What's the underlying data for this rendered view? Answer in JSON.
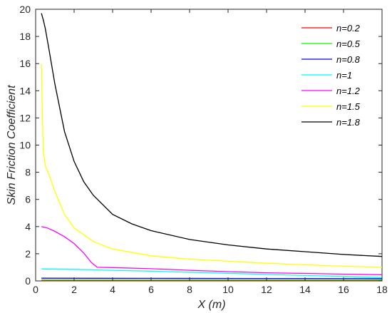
{
  "chart_data": {
    "type": "line",
    "xlabel": "X (m)",
    "ylabel": "Skin Friction Coefficient",
    "xlim": [
      0,
      18
    ],
    "ylim": [
      0,
      20
    ],
    "xticks": [
      0,
      2,
      4,
      6,
      8,
      10,
      12,
      14,
      16,
      18
    ],
    "yticks": [
      0,
      2,
      4,
      6,
      8,
      10,
      12,
      14,
      16,
      18,
      20
    ],
    "grid": false,
    "legend_position": "top-right",
    "series": [
      {
        "name": "n=0.2",
        "color": "#ff0000",
        "points": [
          [
            0.3,
            0.02
          ],
          [
            18,
            0.02
          ]
        ]
      },
      {
        "name": "n=0.5",
        "color": "#00ff00",
        "points": [
          [
            0.3,
            0.08
          ],
          [
            18,
            0.08
          ]
        ]
      },
      {
        "name": "n=0.8",
        "color": "#0000ff",
        "points": [
          [
            0.3,
            0.2
          ],
          [
            6,
            0.19
          ],
          [
            12,
            0.18
          ],
          [
            18,
            0.17
          ]
        ]
      },
      {
        "name": "n=1",
        "color": "#00ffff",
        "points": [
          [
            0.3,
            0.88
          ],
          [
            2,
            0.85
          ],
          [
            4,
            0.78
          ],
          [
            6,
            0.72
          ],
          [
            8,
            0.64
          ],
          [
            10,
            0.56
          ],
          [
            12,
            0.48
          ],
          [
            14,
            0.4
          ],
          [
            16,
            0.33
          ],
          [
            18,
            0.25
          ]
        ]
      },
      {
        "name": "n=1.2",
        "color": "#ff00ff",
        "points": [
          [
            0.3,
            4.0
          ],
          [
            0.6,
            3.9
          ],
          [
            1.0,
            3.65
          ],
          [
            1.5,
            3.25
          ],
          [
            2.0,
            2.75
          ],
          [
            2.5,
            2.05
          ],
          [
            2.9,
            1.35
          ],
          [
            3.2,
            1.0
          ],
          [
            4,
            0.98
          ],
          [
            6,
            0.9
          ],
          [
            8,
            0.78
          ],
          [
            10,
            0.68
          ],
          [
            12,
            0.6
          ],
          [
            14,
            0.55
          ],
          [
            16,
            0.5
          ],
          [
            18,
            0.45
          ]
        ]
      },
      {
        "name": "n=1.5",
        "color": "#ffff00",
        "points": [
          [
            0.3,
            16.0
          ],
          [
            0.35,
            12.0
          ],
          [
            0.4,
            9.5
          ],
          [
            0.5,
            8.5
          ],
          [
            0.7,
            7.8
          ],
          [
            1.0,
            6.6
          ],
          [
            1.5,
            4.9
          ],
          [
            2,
            3.9
          ],
          [
            3,
            2.9
          ],
          [
            4,
            2.35
          ],
          [
            6,
            1.85
          ],
          [
            8,
            1.6
          ],
          [
            10,
            1.45
          ],
          [
            12,
            1.3
          ],
          [
            14,
            1.18
          ],
          [
            16,
            1.08
          ],
          [
            18,
            1.0
          ]
        ]
      },
      {
        "name": "n=1.8",
        "color": "#000000",
        "points": [
          [
            0.3,
            19.7
          ],
          [
            0.4,
            19.2
          ],
          [
            0.5,
            18.6
          ],
          [
            0.7,
            17.0
          ],
          [
            1.0,
            14.5
          ],
          [
            1.5,
            11.0
          ],
          [
            2,
            8.8
          ],
          [
            2.5,
            7.3
          ],
          [
            3,
            6.3
          ],
          [
            4,
            4.9
          ],
          [
            5,
            4.2
          ],
          [
            6,
            3.7
          ],
          [
            8,
            3.05
          ],
          [
            10,
            2.65
          ],
          [
            12,
            2.35
          ],
          [
            14,
            2.15
          ],
          [
            16,
            1.95
          ],
          [
            18,
            1.8
          ]
        ]
      }
    ]
  }
}
